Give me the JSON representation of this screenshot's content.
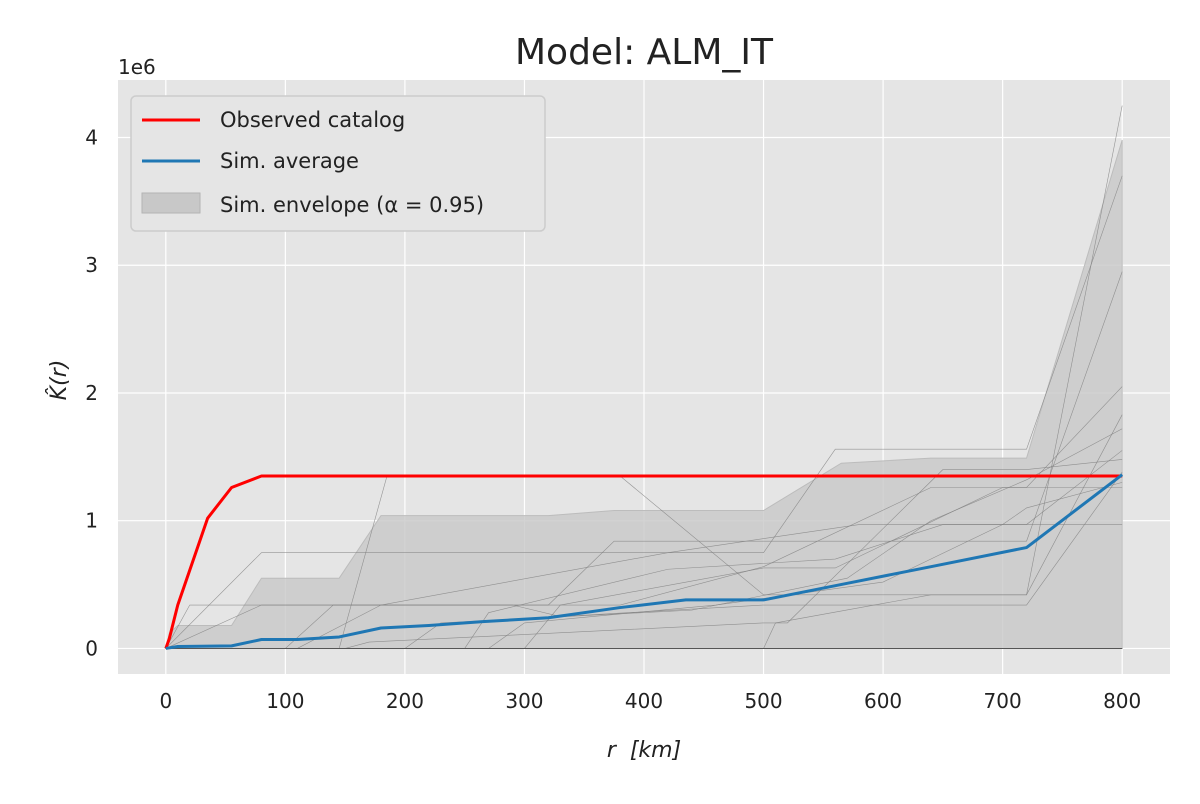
{
  "chart_data": {
    "type": "line",
    "title": "Model: ALM_IT",
    "xlabel": "r  [km]",
    "ylabel": "K̂(r)",
    "y_offset_label": "1e6",
    "xlim": [
      -40,
      840
    ],
    "ylim": [
      -0.2,
      4.45
    ],
    "x_ticks": [
      0,
      100,
      200,
      300,
      400,
      500,
      600,
      700,
      800
    ],
    "y_ticks": [
      0,
      1,
      2,
      3,
      4
    ],
    "y_tick_labels": [
      "0",
      "1",
      "2",
      "3",
      "4"
    ],
    "grid": true,
    "legend_position": "top-left",
    "legend": {
      "observed": "Observed catalog",
      "average": "Sim. average",
      "envelope": "Sim. envelope (α = 0.95)"
    },
    "colors": {
      "observed": "#ff0000",
      "average": "#1f77b4",
      "envelope_fill": "#c8c8c8",
      "sim_lines": "#808080",
      "plot_bg": "#e5e5e5",
      "grid": "#ffffff"
    },
    "series": [
      {
        "name": "Observed catalog",
        "x": [
          0,
          3,
          10,
          35,
          55,
          80,
          100,
          200,
          300,
          400,
          500,
          600,
          700,
          800
        ],
        "values": [
          0,
          0.08,
          0.34,
          1.02,
          1.26,
          1.35,
          1.35,
          1.35,
          1.35,
          1.35,
          1.35,
          1.35,
          1.35,
          1.35
        ]
      },
      {
        "name": "Sim. average",
        "x": [
          0,
          10,
          55,
          80,
          110,
          145,
          180,
          220,
          265,
          320,
          380,
          435,
          500,
          570,
          640,
          720,
          800
        ],
        "values": [
          0,
          0.015,
          0.02,
          0.07,
          0.07,
          0.09,
          0.16,
          0.18,
          0.21,
          0.24,
          0.32,
          0.38,
          0.38,
          0.51,
          0.64,
          0.79,
          1.36
        ]
      },
      {
        "name": "Sim. envelope (α = 0.95)",
        "x": [
          0,
          3,
          10,
          55,
          80,
          145,
          180,
          320,
          375,
          500,
          565,
          640,
          720,
          800
        ],
        "upper": [
          0,
          0.12,
          0.18,
          0.18,
          0.55,
          0.55,
          1.04,
          1.04,
          1.08,
          1.08,
          1.45,
          1.49,
          1.49,
          3.98
        ],
        "lower": [
          0,
          0,
          0,
          0,
          0,
          0,
          0,
          0,
          0,
          0,
          0,
          0,
          0,
          0
        ]
      }
    ],
    "simulations": [
      {
        "x": [
          0,
          80,
          100,
          180,
          400,
          500,
          510,
          640,
          720,
          800
        ],
        "values": [
          0,
          0,
          0,
          0,
          0,
          0,
          0.2,
          0.42,
          0.42,
          4.25
        ]
      },
      {
        "x": [
          0,
          80,
          180,
          200,
          500,
          560,
          720,
          800
        ],
        "values": [
          0,
          0.75,
          0.75,
          0.75,
          0.75,
          1.56,
          1.56,
          3.7
        ]
      },
      {
        "x": [
          0,
          80,
          200,
          320,
          375,
          500,
          640,
          720,
          800
        ],
        "values": [
          0,
          0.34,
          0.34,
          0.34,
          0.84,
          0.84,
          0.84,
          0.84,
          2.95
        ]
      },
      {
        "x": [
          0,
          110,
          180,
          380,
          500,
          640,
          720,
          800
        ],
        "values": [
          0,
          0,
          0.34,
          0.34,
          0.64,
          1.26,
          1.26,
          2.05
        ]
      },
      {
        "x": [
          0,
          145,
          185,
          380,
          500,
          640,
          720,
          800
        ],
        "values": [
          0,
          0,
          1.35,
          1.35,
          0.42,
          0.42,
          0.42,
          1.83
        ]
      },
      {
        "x": [
          0,
          200,
          230,
          440,
          570,
          640,
          720,
          800
        ],
        "values": [
          0,
          0,
          0.2,
          0.3,
          0.55,
          1.0,
          1.32,
          1.72
        ]
      },
      {
        "x": [
          0,
          250,
          270,
          420,
          560,
          650,
          720,
          800
        ],
        "values": [
          0,
          0,
          0.28,
          0.62,
          0.7,
          0.97,
          0.97,
          1.55
        ]
      },
      {
        "x": [
          0,
          20,
          55,
          290,
          330,
          500,
          720,
          800
        ],
        "values": [
          0,
          0.34,
          0.34,
          0.34,
          0.25,
          0.34,
          0.34,
          1.38
        ]
      },
      {
        "x": [
          0,
          270,
          300,
          460,
          600,
          700,
          720,
          800
        ],
        "values": [
          0,
          0,
          0.2,
          0.34,
          0.52,
          0.97,
          1.1,
          1.3
        ]
      },
      {
        "x": [
          0,
          100,
          140,
          180,
          420,
          580,
          720,
          800
        ],
        "values": [
          0,
          0,
          0.34,
          0.34,
          0.75,
          0.97,
          0.97,
          0.97
        ]
      },
      {
        "x": [
          0,
          150,
          170,
          500,
          520,
          650,
          720,
          800
        ],
        "values": [
          0,
          0,
          0.05,
          0.2,
          0.2,
          1.4,
          1.4,
          1.48
        ]
      },
      {
        "x": [
          0,
          300,
          330,
          500,
          560,
          700,
          720,
          800
        ],
        "values": [
          0,
          0,
          0.34,
          0.63,
          0.63,
          1.26,
          1.26,
          1.26
        ]
      }
    ]
  }
}
